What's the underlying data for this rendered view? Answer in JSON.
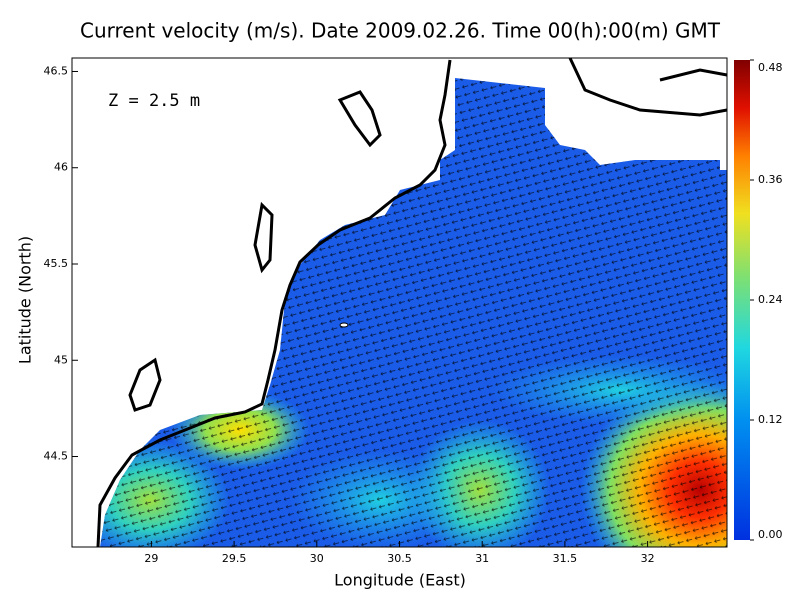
{
  "chart_data": {
    "type": "vector-field",
    "title": "Current velocity (m/s). Date 2009.02.26. Time 00(h):00(m) GMT",
    "annotation": "Z = 2.5 m",
    "xlabel": "Longitude (East)",
    "ylabel": "Latitude (North)",
    "xlim": [
      28.52,
      32.48
    ],
    "xticks": [
      29,
      29.5,
      30,
      30.5,
      31,
      31.5,
      32
    ],
    "ylim": [
      44.03,
      46.57
    ],
    "yticks": [
      44.5,
      45,
      45.5,
      46,
      46.5
    ],
    "clim": [
      0,
      0.48
    ],
    "cticks": [
      {
        "value": 0,
        "label": "0.00"
      },
      0.12,
      0.24,
      0.36,
      0.48
    ]
  }
}
